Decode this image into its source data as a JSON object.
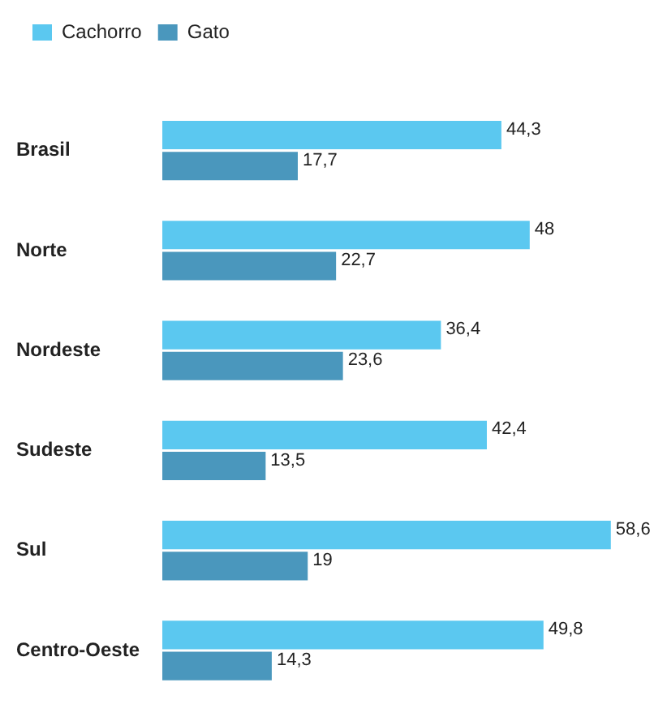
{
  "chart_data": {
    "type": "bar",
    "orientation": "horizontal",
    "categories": [
      "Brasil",
      "Norte",
      "Nordeste",
      "Sudeste",
      "Sul",
      "Centro-Oeste"
    ],
    "series": [
      {
        "name": "Cachorro",
        "color": "#5bc8f0",
        "values": [
          44.3,
          48,
          36.4,
          42.4,
          58.6,
          49.8
        ],
        "value_labels": [
          "44,3",
          "48",
          "36,4",
          "42,4",
          "58,6",
          "49,8"
        ]
      },
      {
        "name": "Gato",
        "color": "#4a97bd",
        "values": [
          17.7,
          22.7,
          23.6,
          13.5,
          19,
          14.3
        ],
        "value_labels": [
          "17,7",
          "22,7",
          "23,6",
          "13,5",
          "19",
          "14,3"
        ]
      }
    ],
    "legend": "top left",
    "tick_labels": "y"
  }
}
